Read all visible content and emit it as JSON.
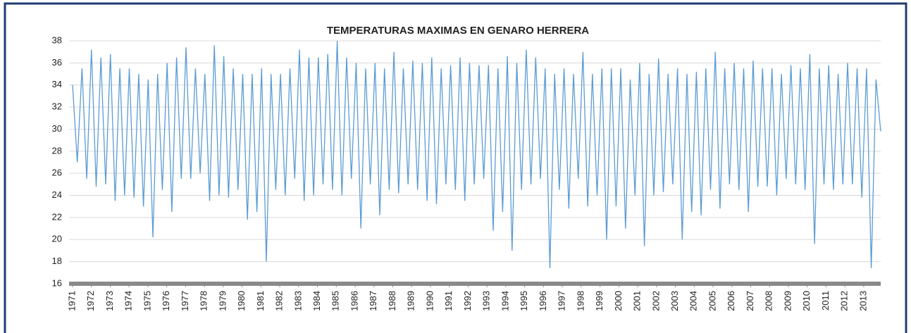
{
  "chart_data": {
    "type": "line",
    "title": "TEMPERATURAS MAXIMAS EN GENARO HERRERA",
    "color": "#5b9bd5",
    "ylim": [
      16,
      38
    ],
    "yticks": [
      16,
      18,
      20,
      22,
      24,
      26,
      28,
      30,
      32,
      34,
      36,
      38
    ],
    "xlim": [
      1971,
      2013.9
    ],
    "xticks": [
      1971,
      1972,
      1973,
      1974,
      1975,
      1976,
      1977,
      1978,
      1979,
      1980,
      1981,
      1982,
      1983,
      1984,
      1985,
      1986,
      1987,
      1988,
      1989,
      1990,
      1991,
      1992,
      1993,
      1994,
      1995,
      1996,
      1997,
      1998,
      1999,
      2000,
      2001,
      2002,
      2003,
      2004,
      2005,
      2006,
      2007,
      2008,
      2009,
      2010,
      2011,
      2012,
      2013
    ],
    "grid": true,
    "values": [
      34,
      27,
      35.5,
      25.5,
      37.2,
      24.8,
      36.5,
      25,
      36.8,
      23.5,
      35.5,
      24,
      35.5,
      23.8,
      35,
      23,
      34.5,
      20.2,
      35,
      24.5,
      36,
      22.5,
      36.5,
      25.5,
      37.4,
      25.5,
      35.5,
      26,
      35,
      23.5,
      37.6,
      24,
      36.6,
      23.8,
      35.5,
      24.5,
      35,
      21.8,
      35,
      22.5,
      35.5,
      18,
      35,
      24.5,
      35,
      24,
      35.5,
      25.5,
      37.2,
      23.5,
      36.5,
      24,
      36.5,
      25,
      36.8,
      24.5,
      38,
      24,
      36.5,
      25.5,
      36,
      21,
      35.5,
      25,
      36,
      22.2,
      35.5,
      24.5,
      37,
      24.2,
      35.5,
      25,
      36.2,
      24.5,
      36,
      23.5,
      36.5,
      23.2,
      35.5,
      25,
      35.8,
      24.5,
      36.5,
      23.5,
      36,
      25,
      35.8,
      25.5,
      35.8,
      20.8,
      35.5,
      22.5,
      36.6,
      19,
      36,
      24.5,
      37.2,
      25,
      36.5,
      25.5,
      35.5,
      17.4,
      35,
      24.5,
      35.5,
      22.8,
      35,
      25.5,
      37,
      23,
      35,
      24,
      35.5,
      20,
      35.5,
      23,
      35.5,
      21,
      34.5,
      24,
      36,
      19.4,
      35,
      24,
      36.4,
      24.3,
      35,
      25,
      35.5,
      20,
      35,
      22.5,
      35.2,
      22.2,
      35.5,
      24.5,
      37,
      22.8,
      35.5,
      25,
      36,
      24.5,
      35.5,
      22.5,
      36.2,
      24.8,
      35.5,
      24.8,
      35.5,
      24,
      35,
      25.5,
      35.8,
      25,
      35.5,
      24.5,
      36.8,
      19.6,
      35.5,
      25,
      35.8,
      24.5,
      35,
      25,
      36,
      25,
      35.5,
      23.8,
      35.5,
      17.4,
      34.5,
      29.8
    ]
  }
}
